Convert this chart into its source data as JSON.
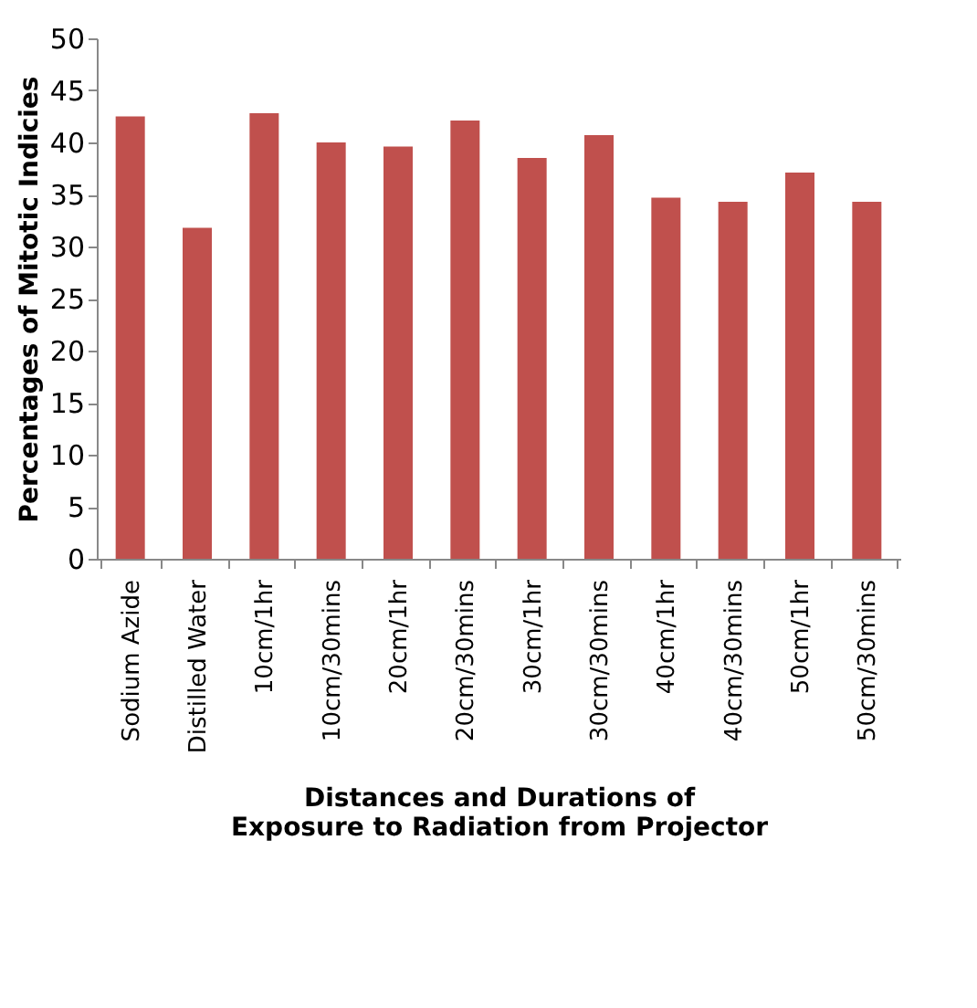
{
  "chart_data": {
    "type": "bar",
    "xlabel": "Distances and Durations of Exposure to Radiation from Projector",
    "ylabel": "Percentages of Mitotic Indicies",
    "categories": [
      "Sodium Azide",
      "Distilled Water",
      "10cm/1hr",
      "10cm/30mins",
      "20cm/1hr",
      "20cm/30mins",
      "30cm/1hr",
      "30cm/30mins",
      "40cm/1hr",
      "40cm/30mins",
      "50cm/1hr",
      "50cm/30mins"
    ],
    "values": [
      42.5,
      31.8,
      42.8,
      40.0,
      39.6,
      42.1,
      38.5,
      40.7,
      34.7,
      34.3,
      37.1,
      34.3
    ],
    "color": "#c0504d",
    "ylim": [
      0,
      50
    ],
    "yticks": [
      0,
      5,
      10,
      15,
      20,
      25,
      30,
      35,
      40,
      45,
      50
    ],
    "grid": false
  }
}
